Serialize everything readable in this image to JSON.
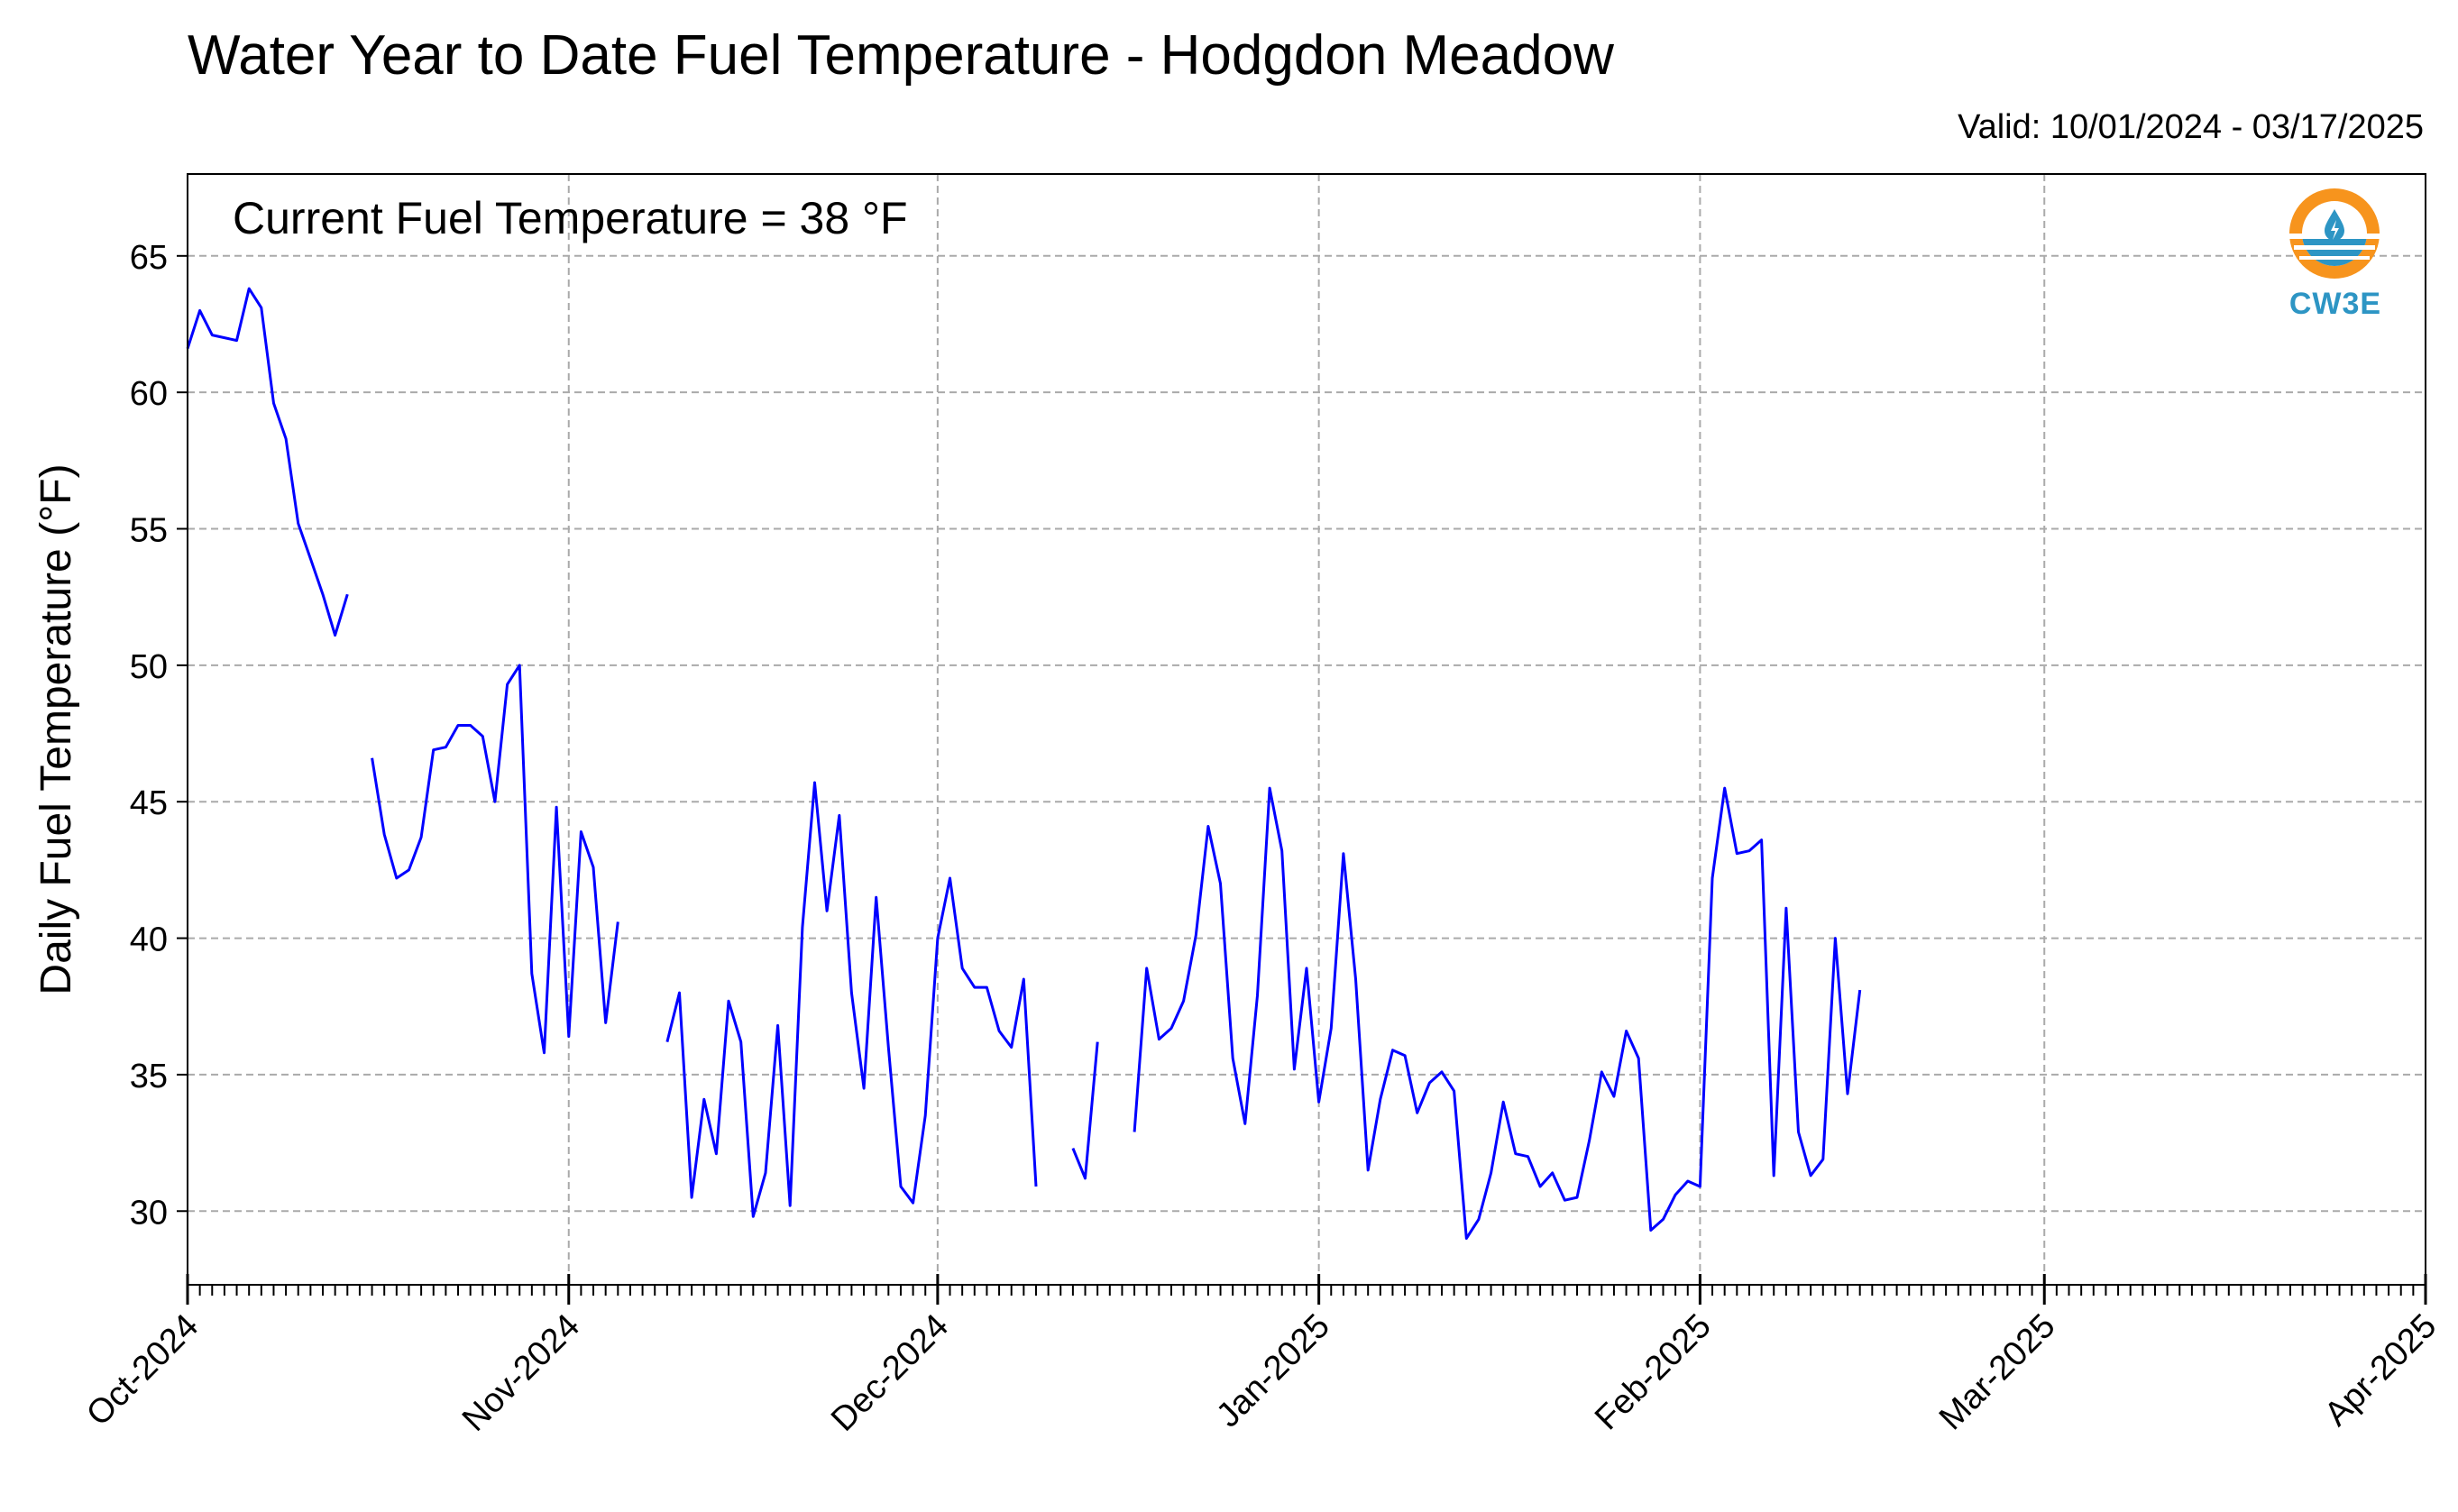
{
  "title": "Water Year to Date Fuel Temperature - Hodgdon Meadow",
  "subtitle": "Valid: 10/01/2024 - 03/17/2025",
  "annotation": "Current Fuel Temperature = 38 °F",
  "logo_text": "CW3E",
  "colors": {
    "line": "#0000ff",
    "grid": "#aaaaaa",
    "logo_orange": "#f7941d",
    "logo_blue": "#2d95c4"
  },
  "chart_data": {
    "type": "line",
    "ylabel": "Daily Fuel Temperature (°F)",
    "xlabel": "",
    "xlim": [
      "2024-10-01",
      "2025-04-01"
    ],
    "ylim": [
      27.3,
      68.0
    ],
    "yticks": [
      30,
      35,
      40,
      45,
      50,
      55,
      60,
      65
    ],
    "xticks": [
      {
        "date": "2024-10-01",
        "label": "Oct-2024"
      },
      {
        "date": "2024-11-01",
        "label": "Nov-2024"
      },
      {
        "date": "2024-12-01",
        "label": "Dec-2024"
      },
      {
        "date": "2025-01-01",
        "label": "Jan-2025"
      },
      {
        "date": "2025-02-01",
        "label": "Feb-2025"
      },
      {
        "date": "2025-03-01",
        "label": "Mar-2025"
      },
      {
        "date": "2025-04-01",
        "label": "Apr-2025"
      }
    ],
    "grid": true,
    "segments": [
      {
        "start": "2024-10-01",
        "values": [
          61.6,
          63.0,
          62.1,
          62.0,
          61.9,
          63.8,
          63.1,
          59.6,
          58.3,
          55.2,
          53.9,
          52.6,
          51.1,
          52.6
        ]
      },
      {
        "start": "2024-10-16",
        "values": [
          46.6,
          43.8,
          42.2,
          42.5,
          43.7,
          46.9,
          47.0,
          47.8,
          47.8,
          47.4,
          45.0,
          49.3,
          50.0,
          38.7,
          35.8,
          44.8,
          36.4,
          43.9,
          42.6,
          36.9,
          40.6
        ]
      },
      {
        "start": "2024-11-09",
        "values": [
          36.2,
          38.0,
          30.5,
          34.1,
          32.1,
          37.7,
          36.2,
          29.8,
          31.4,
          36.8,
          30.2,
          40.4,
          45.7,
          41.0,
          44.5,
          38.0,
          34.5,
          41.5,
          36.0,
          30.9,
          30.3,
          33.5,
          40.0,
          42.2,
          38.9,
          38.2,
          38.2,
          36.6,
          36.0,
          38.5,
          30.9
        ]
      },
      {
        "start": "2024-12-12",
        "values": [
          32.3,
          31.2,
          36.2
        ]
      },
      {
        "start": "2024-12-17",
        "values": [
          32.9,
          38.9,
          36.3,
          36.7,
          37.7,
          40.1,
          44.1,
          42.0,
          35.6,
          33.2,
          37.9,
          45.5,
          43.2,
          35.2,
          38.9,
          34.0,
          36.7,
          43.1,
          38.5,
          31.5,
          34.1,
          35.9,
          35.7,
          33.6,
          34.7,
          35.1,
          34.4,
          29.0,
          29.7,
          31.4,
          34.0,
          32.1,
          32.0,
          30.9,
          31.4,
          30.4,
          30.5,
          32.6,
          35.1,
          34.2,
          36.6,
          35.6,
          29.3,
          29.7,
          30.6,
          31.1,
          30.9,
          42.2,
          45.5,
          43.1,
          43.2,
          43.6,
          31.3,
          41.1,
          32.9,
          31.3,
          31.9,
          40.0,
          34.3,
          38.1
        ]
      }
    ]
  }
}
